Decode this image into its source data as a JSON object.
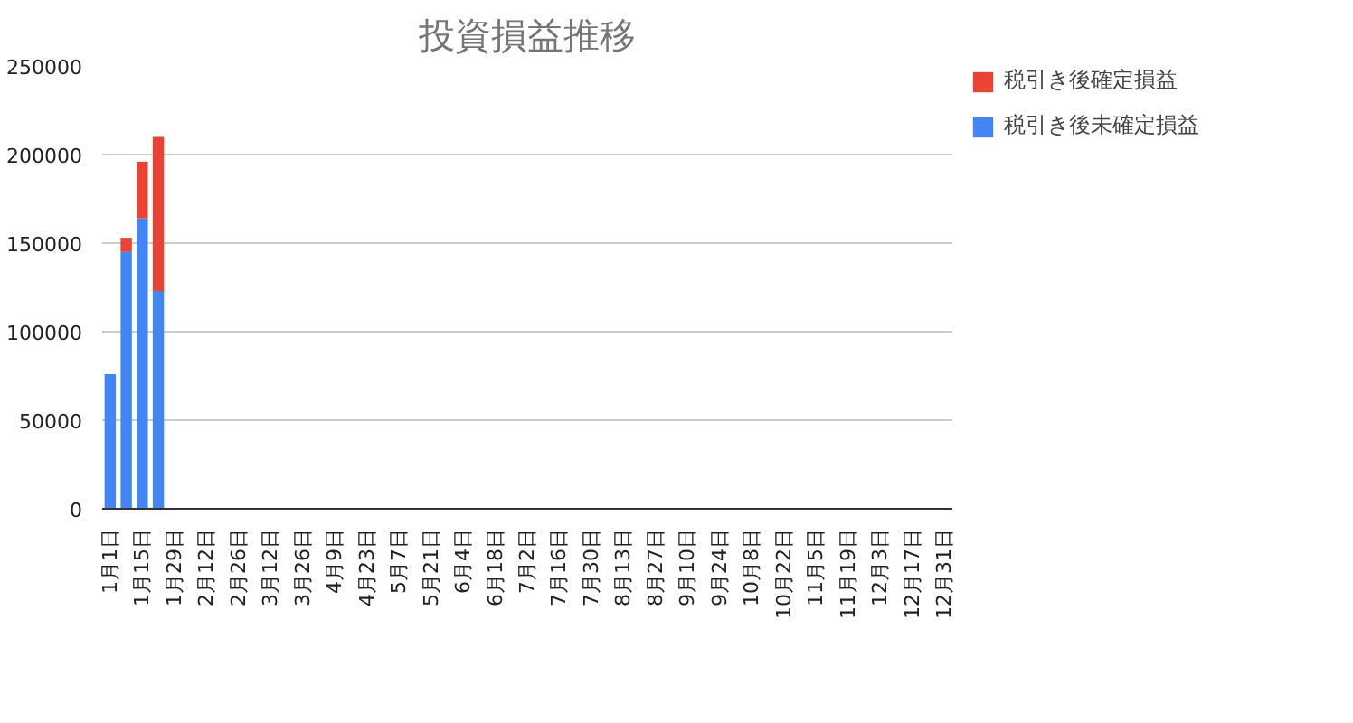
{
  "chart_data": {
    "type": "bar",
    "title": "投資損益推移",
    "stacked": true,
    "categories": [
      "1月1日",
      null,
      "1月15日",
      null,
      "1月29日",
      null,
      "2月12日",
      null,
      "2月26日",
      null,
      "3月12日",
      null,
      "3月26日",
      null,
      "4月9日",
      null,
      "4月23日",
      null,
      "5月7日",
      null,
      "5月21日",
      null,
      "6月4日",
      null,
      "6月18日",
      null,
      "7月2日",
      null,
      "7月16日",
      null,
      "7月30日",
      null,
      "8月13日",
      null,
      "8月27日",
      null,
      "9月10日",
      null,
      "9月24日",
      null,
      "10月8日",
      null,
      "10月22日",
      null,
      "11月5日",
      null,
      "11月19日",
      null,
      "12月3日",
      null,
      "12月17日",
      null,
      "12月31日"
    ],
    "series": [
      {
        "name": "税引き後未確定損益",
        "color": "#4285f4",
        "values": [
          76000,
          145000,
          164000,
          123000,
          null,
          null,
          null,
          null,
          null,
          null,
          null,
          null,
          null,
          null,
          null,
          null,
          null,
          null,
          null,
          null,
          null,
          null,
          null,
          null,
          null,
          null,
          null,
          null,
          null,
          null,
          null,
          null,
          null,
          null,
          null,
          null,
          null,
          null,
          null,
          null,
          null,
          null,
          null,
          null,
          null,
          null,
          null,
          null,
          null,
          null,
          null,
          null,
          null
        ]
      },
      {
        "name": "税引き後確定損益",
        "color": "#ea4335",
        "values": [
          null,
          8000,
          32000,
          87000,
          null,
          null,
          null,
          null,
          null,
          null,
          null,
          null,
          null,
          null,
          null,
          null,
          null,
          null,
          null,
          null,
          null,
          null,
          null,
          null,
          null,
          null,
          null,
          null,
          null,
          null,
          null,
          null,
          null,
          null,
          null,
          null,
          null,
          null,
          null,
          null,
          null,
          null,
          null,
          null,
          null,
          null,
          null,
          null,
          null,
          null,
          null,
          null,
          null
        ]
      }
    ],
    "ylim": [
      0,
      250000
    ],
    "yticks": [
      0,
      50000,
      100000,
      150000,
      200000,
      250000
    ],
    "grid": "y",
    "legend": "top right"
  }
}
